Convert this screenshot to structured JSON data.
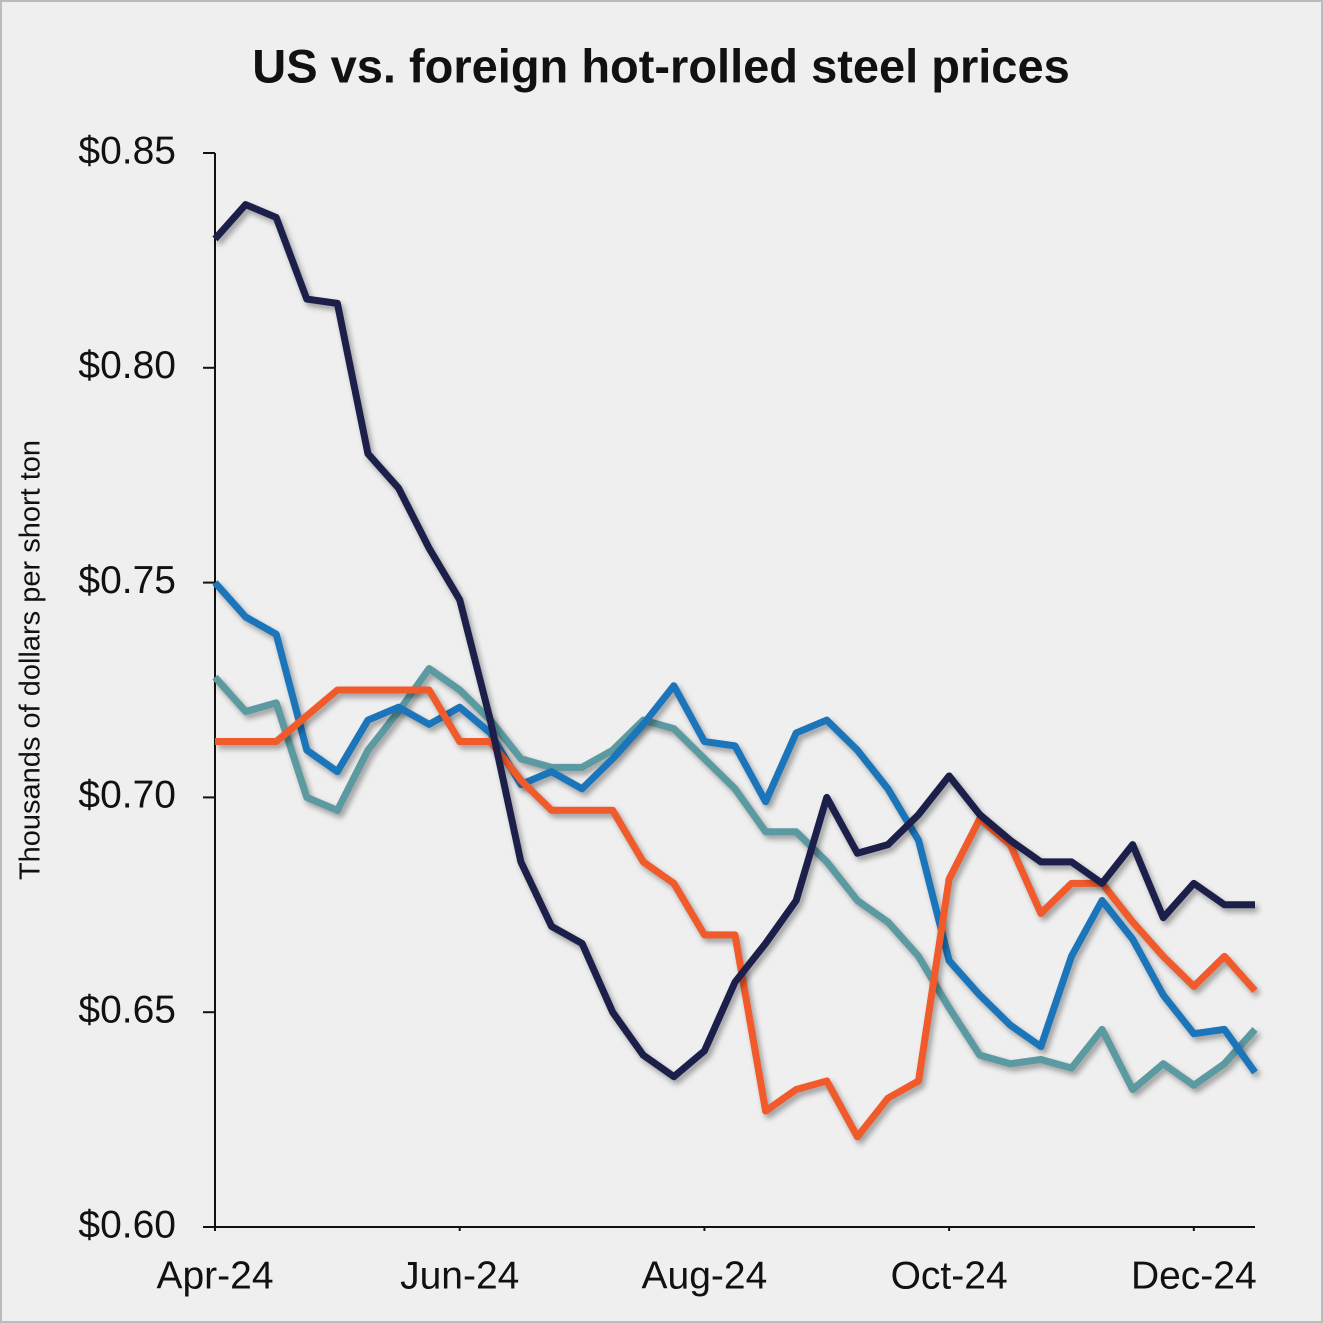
{
  "chart_data": {
    "type": "line",
    "title": "US vs. foreign hot-rolled steel prices",
    "y_label": "Thousands of dollars per short ton",
    "x": [
      0,
      0.25,
      0.5,
      0.75,
      1,
      1.25,
      1.5,
      1.75,
      2,
      2.25,
      2.5,
      2.75,
      3,
      3.25,
      3.5,
      3.75,
      4,
      4.25,
      4.5,
      4.75,
      5,
      5.25,
      5.5,
      5.75,
      6,
      6.25,
      6.5,
      6.75,
      7,
      7.25,
      7.5,
      7.75,
      8,
      8.25,
      8.5
    ],
    "xlim": [
      0,
      8.5
    ],
    "xticks": [
      {
        "value": 0,
        "label": "Apr-24"
      },
      {
        "value": 2,
        "label": "Jun-24"
      },
      {
        "value": 4,
        "label": "Aug-24"
      },
      {
        "value": 6,
        "label": "Oct-24"
      },
      {
        "value": 8,
        "label": "Dec-24"
      }
    ],
    "ylim": [
      0.6,
      0.85
    ],
    "yticks": [
      {
        "value": 0.6,
        "label": "$0.60"
      },
      {
        "value": 0.65,
        "label": "$0.65"
      },
      {
        "value": 0.7,
        "label": "$0.70"
      },
      {
        "value": 0.75,
        "label": "$0.75"
      },
      {
        "value": 0.8,
        "label": "$0.80"
      },
      {
        "value": 0.85,
        "label": "$0.85"
      }
    ],
    "series": [
      {
        "color": "#5b9aa1",
        "values": [
          0.728,
          0.72,
          0.722,
          0.7,
          0.697,
          0.711,
          0.72,
          0.73,
          0.725,
          0.718,
          0.709,
          0.707,
          0.707,
          0.711,
          0.718,
          0.716,
          0.709,
          0.702,
          0.692,
          0.692,
          0.685,
          0.676,
          0.671,
          0.663,
          0.651,
          0.64,
          0.638,
          0.639,
          0.637,
          0.646,
          0.632,
          0.638,
          0.633,
          0.638,
          0.646
        ]
      },
      {
        "color": "#1b75bb",
        "values": [
          0.75,
          0.742,
          0.738,
          0.711,
          0.706,
          0.718,
          0.721,
          0.717,
          0.721,
          0.715,
          0.703,
          0.706,
          0.702,
          0.709,
          0.717,
          0.726,
          0.713,
          0.712,
          0.699,
          0.715,
          0.718,
          0.711,
          0.702,
          0.69,
          0.662,
          0.654,
          0.647,
          0.642,
          0.663,
          0.676,
          0.667,
          0.654,
          0.645,
          0.646,
          0.636
        ]
      },
      {
        "color": "#f15a2b",
        "values": [
          0.713,
          0.713,
          0.713,
          0.719,
          0.725,
          0.725,
          0.725,
          0.725,
          0.713,
          0.713,
          0.704,
          0.697,
          0.697,
          0.697,
          0.685,
          0.68,
          0.668,
          0.668,
          0.627,
          0.632,
          0.634,
          0.621,
          0.63,
          0.634,
          0.681,
          0.695,
          0.689,
          0.673,
          0.68,
          0.68,
          0.671,
          0.663,
          0.656,
          0.663,
          0.655
        ]
      },
      {
        "color": "#1b1f4a",
        "values": [
          0.83,
          0.838,
          0.835,
          0.816,
          0.815,
          0.78,
          0.772,
          0.758,
          0.746,
          0.718,
          0.685,
          0.67,
          0.666,
          0.65,
          0.64,
          0.635,
          0.641,
          0.657,
          0.666,
          0.676,
          0.7,
          0.687,
          0.689,
          0.696,
          0.705,
          0.696,
          0.69,
          0.685,
          0.685,
          0.68,
          0.689,
          0.672,
          0.68,
          0.675,
          0.675
        ]
      }
    ]
  }
}
